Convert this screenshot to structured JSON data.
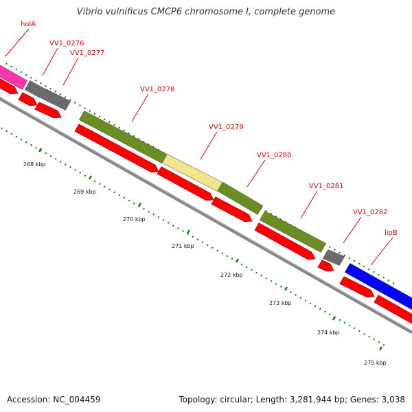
{
  "title": "Vibrio vulnificus CMCP6 chromosome I, complete genome",
  "footer": {
    "accession": "Accession: NC_004459",
    "summary": "Topology: circular; Length: 3,281,944 bp; Genes: 3,038"
  },
  "colors": {
    "cds_arrow": "#ff0000",
    "backbone": "#888888",
    "tick": "#1a7a1a",
    "label": "#d00000"
  },
  "genes": [
    {
      "name": "holA",
      "color": "#ff33aa"
    },
    {
      "name": "VV1_0276",
      "color": "#6b6b6b"
    },
    {
      "name": "VV1_0277",
      "color": "#6b6b6b"
    },
    {
      "name": "VV1_0278",
      "color": "#6b8e23"
    },
    {
      "name": "VV1_0279",
      "color": "#f0e68c"
    },
    {
      "name": "VV1_0280",
      "color": "#6b8e23"
    },
    {
      "name": "VV1_0281",
      "color": "#6b8e23"
    },
    {
      "name": "VV1_0282",
      "color": "#6b6b6b"
    },
    {
      "name": "lipB",
      "color": "#0000ff"
    }
  ],
  "ticks": [
    "268 kbp",
    "269 kbp",
    "270 kbp",
    "271 kbp",
    "272 kbp",
    "273 kbp",
    "274 kbp",
    "275 kbp"
  ]
}
